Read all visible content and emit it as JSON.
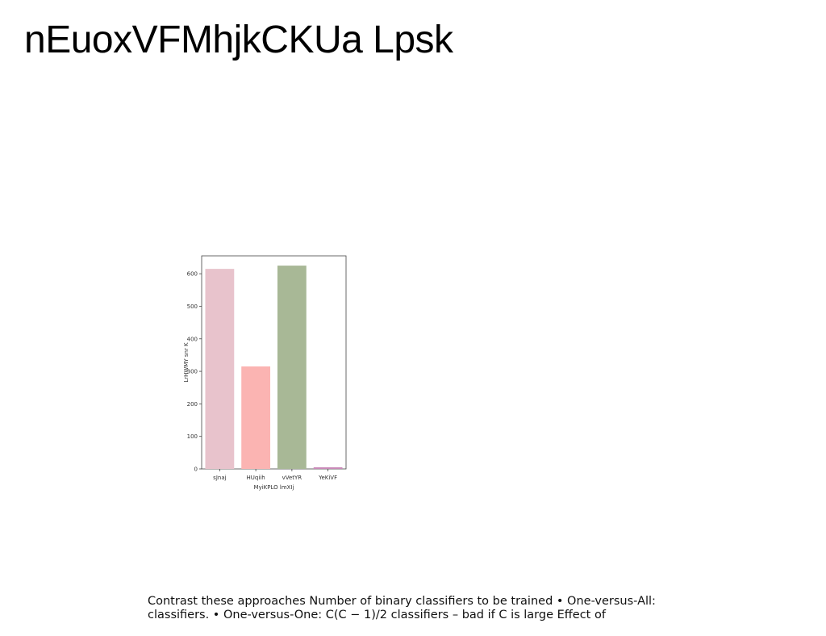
{
  "slide": {
    "title": "nEuoxVFMhjkCKUa Lpsk",
    "caption": "Contrast these approaches Number of binary classifiers to be trained • One-versus-All: classifiers. • One-versus-One: C(C − 1)/2 classifiers – bad if C is large Effect of"
  },
  "chart_data": {
    "type": "bar",
    "categories": [
      "sJnaj",
      "HUqiih",
      "vVetYR",
      "YeKiVF"
    ],
    "values": [
      615,
      315,
      625,
      5
    ],
    "colors": [
      "#e8c3cc",
      "#fbb4b2",
      "#a8b896",
      "#c98ab8"
    ],
    "xlabel": "MyiKPLO lmXIj",
    "ylabel": "LrHWMY snr K",
    "ylim": [
      0,
      655
    ],
    "yticks": [
      0,
      100,
      200,
      300,
      400,
      500,
      600
    ],
    "grid": false
  }
}
